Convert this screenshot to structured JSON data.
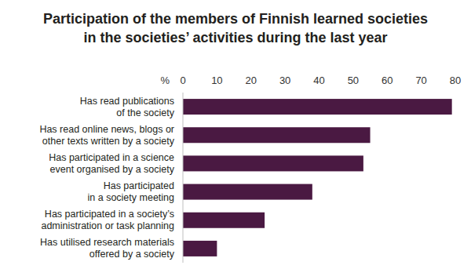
{
  "chart_data": {
    "type": "bar",
    "orientation": "horizontal",
    "title": "Participation of the members of Finnish learned societies\nin the societies’ activities during the last year",
    "x_label": "%",
    "categories": [
      "Has read publications\nof the society",
      "Has read online news, blogs or\nother texts written by a society",
      "Has participated in a science\nevent organised by a society",
      "Has participated\nin a society meeting",
      "Has participated in a society’s\nadministration or task planning",
      "Has utilised research materials\noffered by a society"
    ],
    "values": [
      79,
      55,
      53,
      38,
      24,
      10
    ],
    "color": "#4a1942",
    "xlim": [
      0,
      80
    ],
    "xticks": [
      0,
      10,
      20,
      30,
      40,
      50,
      60,
      70,
      80
    ],
    "grid": false
  }
}
